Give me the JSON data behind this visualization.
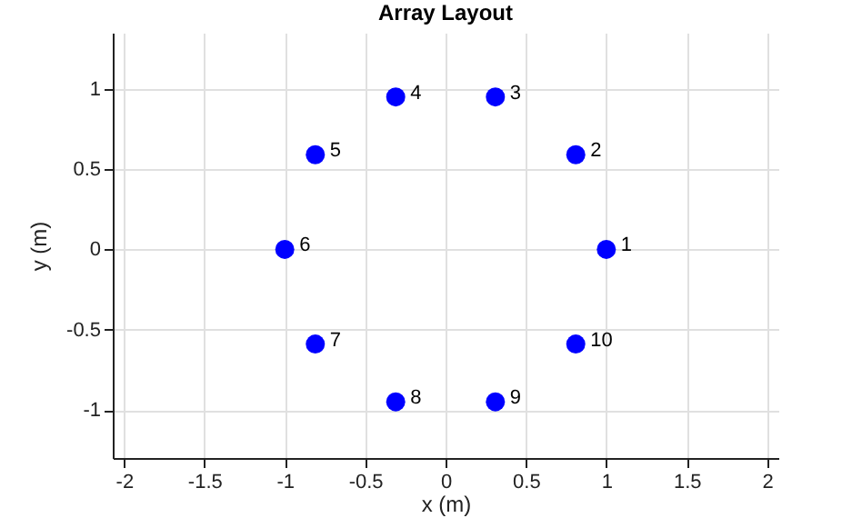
{
  "chart_data": {
    "type": "scatter",
    "title": "Array Layout",
    "xlabel": "x (m)",
    "ylabel": "y (m)",
    "x": [
      1,
      0.81,
      0.31,
      -0.31,
      -0.81,
      -1,
      -0.81,
      -0.31,
      0.31,
      0.81
    ],
    "series": [
      {
        "color": "#0000ff",
        "values": [
          0,
          0.59,
          0.95,
          0.95,
          0.59,
          0,
          -0.59,
          -0.95,
          -0.95,
          -0.59
        ]
      }
    ],
    "xlim": [
      -2.07,
      2.07
    ],
    "xticks": [
      -2,
      -1.5,
      -1,
      -0.5,
      0,
      0.5,
      1,
      1.5,
      2
    ],
    "ylim": [
      -1.3,
      1.35
    ],
    "yticks": [
      -1,
      -0.5,
      0,
      0.5,
      1
    ],
    "grid": true,
    "marker": "circle",
    "annotations": [
      {
        "text": "1",
        "x": 1,
        "y": 0
      },
      {
        "text": "2",
        "x": 0.81,
        "y": 0.59
      },
      {
        "text": "3",
        "x": 0.31,
        "y": 0.95
      },
      {
        "text": "4",
        "x": -0.31,
        "y": 0.95
      },
      {
        "text": "5",
        "x": -0.81,
        "y": 0.59
      },
      {
        "text": "6",
        "x": -1,
        "y": 0
      },
      {
        "text": "7",
        "x": -0.81,
        "y": -0.59
      },
      {
        "text": "8",
        "x": -0.31,
        "y": -0.95
      },
      {
        "text": "9",
        "x": 0.31,
        "y": -0.95
      },
      {
        "text": "10",
        "x": 0.81,
        "y": -0.59
      }
    ]
  }
}
